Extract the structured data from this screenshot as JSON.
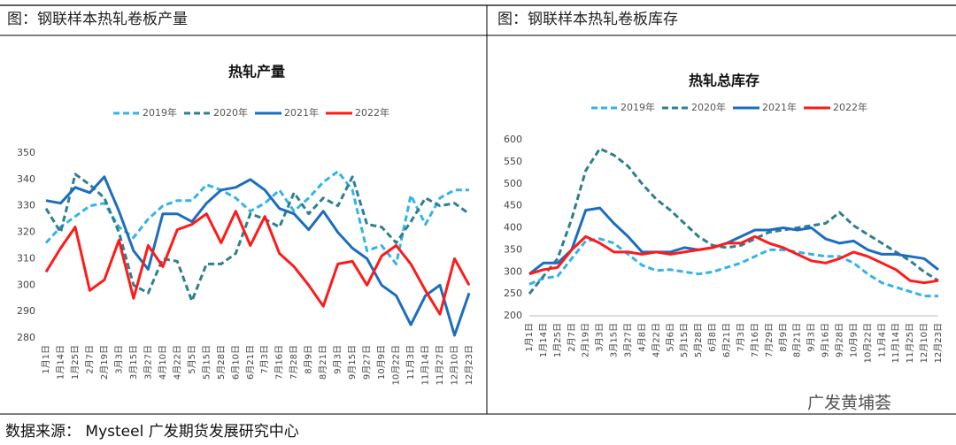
{
  "header": {
    "left_title": "图：钢联样本热轧卷板产量",
    "right_title": "图：钢联样本热轧卷板库存"
  },
  "source": "数据来源： Mysteel 广发期货发展研究中心",
  "watermark": "广发黄埔荟",
  "chart_data": [
    {
      "type": "line",
      "title": "热轧产量",
      "categories": [
        "1月1日",
        "1月14日",
        "1月25日",
        "2月7日",
        "2月19日",
        "3月3日",
        "3月15日",
        "3月27日",
        "4月10日",
        "4月22日",
        "5月5日",
        "5月15日",
        "5月28日",
        "6月10日",
        "6月21日",
        "7月3日",
        "7月16日",
        "7月28日",
        "8月9日",
        "8月21日",
        "9月3日",
        "9月15日",
        "9月27日",
        "10月9日",
        "10月22日",
        "11月3日",
        "11月14日",
        "11月27日",
        "12月10日",
        "12月23日"
      ],
      "ylim": [
        280,
        350
      ],
      "yticks": [
        280,
        290,
        300,
        310,
        320,
        330,
        340,
        350
      ],
      "grid": false,
      "x_axis_line": false,
      "series": [
        {
          "name": "2019年",
          "color": "#33b3ea",
          "line_style": "dashed",
          "values": [
            316,
            322,
            326,
            330,
            331,
            322,
            318,
            325,
            330,
            332,
            332,
            338,
            336,
            333,
            328,
            331,
            336,
            328,
            333,
            339,
            343,
            336,
            313,
            315,
            308,
            334,
            323,
            333,
            336,
            336
          ]
        },
        {
          "name": "2020年",
          "color": "#2f7f8f",
          "line_style": "dashed",
          "values": [
            329,
            320,
            342,
            338,
            333,
            320,
            300,
            297,
            310,
            309,
            294,
            308,
            308,
            312,
            327,
            325,
            322,
            335,
            327,
            333,
            330,
            341,
            323,
            322,
            316,
            324,
            333,
            330,
            331,
            327
          ]
        },
        {
          "name": "2021年",
          "color": "#1c6dbf",
          "line_style": "solid",
          "values": [
            332,
            331,
            337,
            335,
            341,
            328,
            313,
            306,
            327,
            327,
            324,
            331,
            336,
            337,
            340,
            336,
            329,
            327,
            321,
            328,
            320,
            314,
            310,
            300,
            296,
            285,
            296,
            300,
            281,
            297
          ]
        },
        {
          "name": "2022年",
          "color": "#ff1a1a",
          "line_style": "solid",
          "values": [
            305,
            314,
            322,
            298,
            302,
            317,
            295,
            315,
            307,
            321,
            323,
            327,
            316,
            328,
            315,
            326,
            312,
            307,
            300,
            292,
            308,
            309,
            300,
            311,
            315,
            308,
            298,
            289,
            310,
            300
          ]
        }
      ]
    },
    {
      "type": "line",
      "title": "热轧总库存",
      "categories": [
        "1月1日",
        "1月14日",
        "1月25日",
        "2月7日",
        "2月19日",
        "3月3日",
        "3月15日",
        "3月27日",
        "4月8日",
        "4月22日",
        "5月6日",
        "5月15日",
        "5月28日",
        "6月8日",
        "6月21日",
        "7月3日",
        "7月16日",
        "7月29日",
        "8月9日",
        "8月21日",
        "9月3日",
        "9月16日",
        "9月28日",
        "10月9日",
        "10月22日",
        "11月4日",
        "11月14日",
        "11月25日",
        "12月10日",
        "12月23日"
      ],
      "ylim": [
        200,
        600
      ],
      "yticks": [
        200,
        250,
        300,
        350,
        400,
        450,
        500,
        550,
        600
      ],
      "grid": false,
      "x_axis_line": true,
      "series": [
        {
          "name": "2019年",
          "color": "#33b3ea",
          "line_style": "dashed",
          "values": [
            272,
            285,
            290,
            330,
            370,
            375,
            365,
            340,
            315,
            303,
            305,
            300,
            295,
            300,
            310,
            320,
            335,
            350,
            350,
            345,
            340,
            335,
            335,
            320,
            295,
            275,
            265,
            255,
            245,
            245
          ]
        },
        {
          "name": "2020年",
          "color": "#2f7f8f",
          "line_style": "dashed",
          "values": [
            250,
            290,
            330,
            420,
            530,
            580,
            565,
            540,
            500,
            465,
            440,
            410,
            380,
            360,
            355,
            360,
            375,
            390,
            395,
            400,
            405,
            410,
            435,
            405,
            385,
            365,
            345,
            325,
            300,
            280
          ]
        },
        {
          "name": "2021年",
          "color": "#1c6dbf",
          "line_style": "solid",
          "values": [
            295,
            320,
            320,
            350,
            440,
            445,
            410,
            380,
            345,
            345,
            345,
            355,
            350,
            355,
            365,
            380,
            395,
            395,
            400,
            395,
            400,
            375,
            365,
            370,
            350,
            340,
            340,
            335,
            330,
            305
          ]
        },
        {
          "name": "2022年",
          "color": "#ff1a1a",
          "line_style": "solid",
          "values": [
            295,
            305,
            310,
            350,
            380,
            365,
            345,
            345,
            340,
            345,
            340,
            345,
            350,
            355,
            365,
            365,
            380,
            365,
            355,
            340,
            325,
            320,
            330,
            345,
            335,
            320,
            305,
            280,
            275,
            280
          ]
        }
      ]
    }
  ]
}
